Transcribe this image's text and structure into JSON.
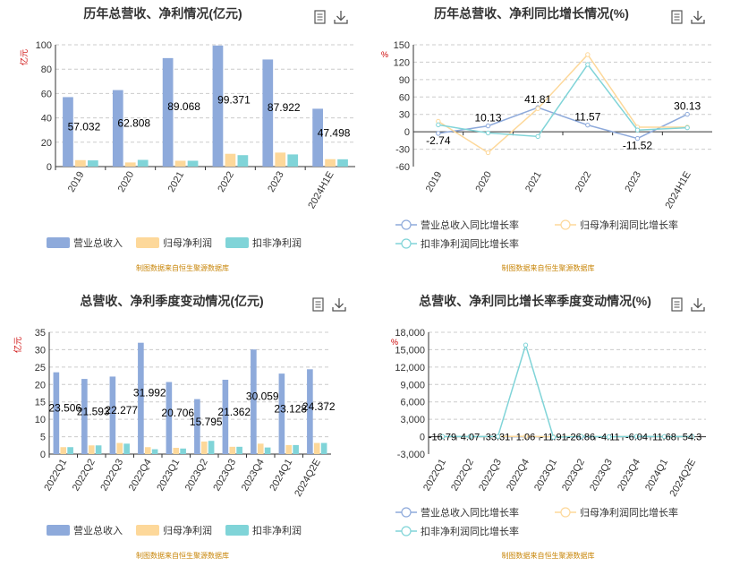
{
  "source_note": "制图数据来自恒生聚源数据库",
  "chart_data": [
    {
      "type": "bar",
      "title": "历年总营收、净利情况(亿元)",
      "ylabel": "亿元",
      "ylim": [
        0,
        100
      ],
      "yticks": [
        0,
        20,
        40,
        60,
        80,
        100
      ],
      "categories": [
        "2019",
        "2020",
        "2021",
        "2022",
        "2023",
        "2024H1E"
      ],
      "series": [
        {
          "name": "营业总收入",
          "color": "#8eaadb",
          "values": [
            57.032,
            62.808,
            89.068,
            99.371,
            87.922,
            47.498
          ]
        },
        {
          "name": "归母净利润",
          "color": "#fdd89a",
          "values": [
            5.3,
            3.4,
            4.8,
            10.5,
            11.5,
            6.1
          ]
        },
        {
          "name": "扣非净利润",
          "color": "#80d4d8",
          "values": [
            5.1,
            5.5,
            4.8,
            9.4,
            10.0,
            6.0
          ]
        }
      ],
      "labels": [
        "57.032",
        "62.808",
        "89.068",
        "99.371",
        "87.922",
        "47.498"
      ],
      "legend": "bottom"
    },
    {
      "type": "line",
      "title": "历年总营收、净利同比增长情况(%)",
      "ylabel": "%",
      "ylim": [
        -60,
        150
      ],
      "yticks": [
        -60,
        -30,
        0,
        30,
        60,
        90,
        120,
        150
      ],
      "categories": [
        "2019",
        "2020",
        "2021",
        "2022",
        "2023",
        "2024H1E"
      ],
      "series": [
        {
          "name": "营业总收入同比增长率",
          "color": "#8eaadb",
          "values": [
            -2.74,
            10.13,
            41.81,
            11.57,
            -11.52,
            30.13
          ]
        },
        {
          "name": "归母净利润同比增长率",
          "color": "#fdd89a",
          "values": [
            18,
            -36,
            40,
            133,
            8,
            8
          ]
        },
        {
          "name": "扣非净利润同比增长率",
          "color": "#80d4d8",
          "values": [
            12,
            -2,
            -8,
            116,
            3,
            7
          ]
        }
      ],
      "labels": [
        "-2.74",
        "10.13",
        "41.81",
        "11.57",
        "-11.52",
        "30.13"
      ],
      "legend": "bottom"
    },
    {
      "type": "bar",
      "title": "总营收、净利季度变动情况(亿元)",
      "ylabel": "亿元",
      "ylim": [
        0,
        35
      ],
      "yticks": [
        0,
        5,
        10,
        15,
        20,
        25,
        30,
        35
      ],
      "categories": [
        "2022Q1",
        "2022Q2",
        "2022Q3",
        "2022Q4",
        "2023Q1",
        "2023Q2",
        "2023Q3",
        "2023Q4",
        "2024Q1",
        "2024Q2E"
      ],
      "series": [
        {
          "name": "营业总收入",
          "color": "#8eaadb",
          "values": [
            23.506,
            21.593,
            22.277,
            31.992,
            20.706,
            15.795,
            21.362,
            30.059,
            23.128,
            24.372
          ]
        },
        {
          "name": "归母净利润",
          "color": "#fdd89a",
          "values": [
            2.0,
            2.5,
            3.2,
            2.0,
            1.8,
            3.6,
            2.1,
            3.0,
            2.6,
            3.2
          ]
        },
        {
          "name": "扣非净利润",
          "color": "#80d4d8",
          "values": [
            2.0,
            2.5,
            3.0,
            1.4,
            1.6,
            3.8,
            2.1,
            1.9,
            2.6,
            3.2
          ]
        }
      ],
      "labels": [
        "23.506",
        "21.593",
        "22.277",
        "31.992",
        "20.706",
        "15.795",
        "21.362",
        "30.059",
        "23.128",
        "24.372"
      ],
      "legend": "bottom"
    },
    {
      "type": "line",
      "title": "总营收、净利同比增长率季度变动情况(%)",
      "ylabel": "%",
      "ylim": [
        -3000,
        18000
      ],
      "yticks": [
        -3000,
        0,
        3000,
        6000,
        9000,
        12000,
        15000,
        18000
      ],
      "categories": [
        "2022Q1",
        "2022Q2",
        "2022Q3",
        "2022Q4",
        "2023Q1",
        "2023Q2",
        "2023Q3",
        "2023Q4",
        "2024Q1",
        "2024Q2E"
      ],
      "series": [
        {
          "name": "营业总收入同比增长率",
          "color": "#8eaadb",
          "values": [
            -16.79,
            4.07,
            33.31,
            1.06,
            -11.91,
            -26.86,
            -4.11,
            -6.04,
            11.68,
            54.3
          ]
        },
        {
          "name": "归母净利润同比增长率",
          "color": "#fdd89a",
          "values": [
            20,
            10,
            30,
            40,
            -20,
            60,
            -30,
            50,
            10,
            20
          ]
        },
        {
          "name": "扣非净利润同比增长率",
          "color": "#80d4d8",
          "values": [
            30,
            20,
            40,
            15800,
            -100,
            50,
            -20,
            40,
            10,
            20
          ]
        }
      ],
      "labels": [
        "-16.79",
        "4.07",
        "33.31",
        "1.06",
        "-11.91",
        "-26.86",
        "-4.11",
        "-6.04",
        "11.68",
        "54.3"
      ],
      "legend": "bottom"
    }
  ]
}
